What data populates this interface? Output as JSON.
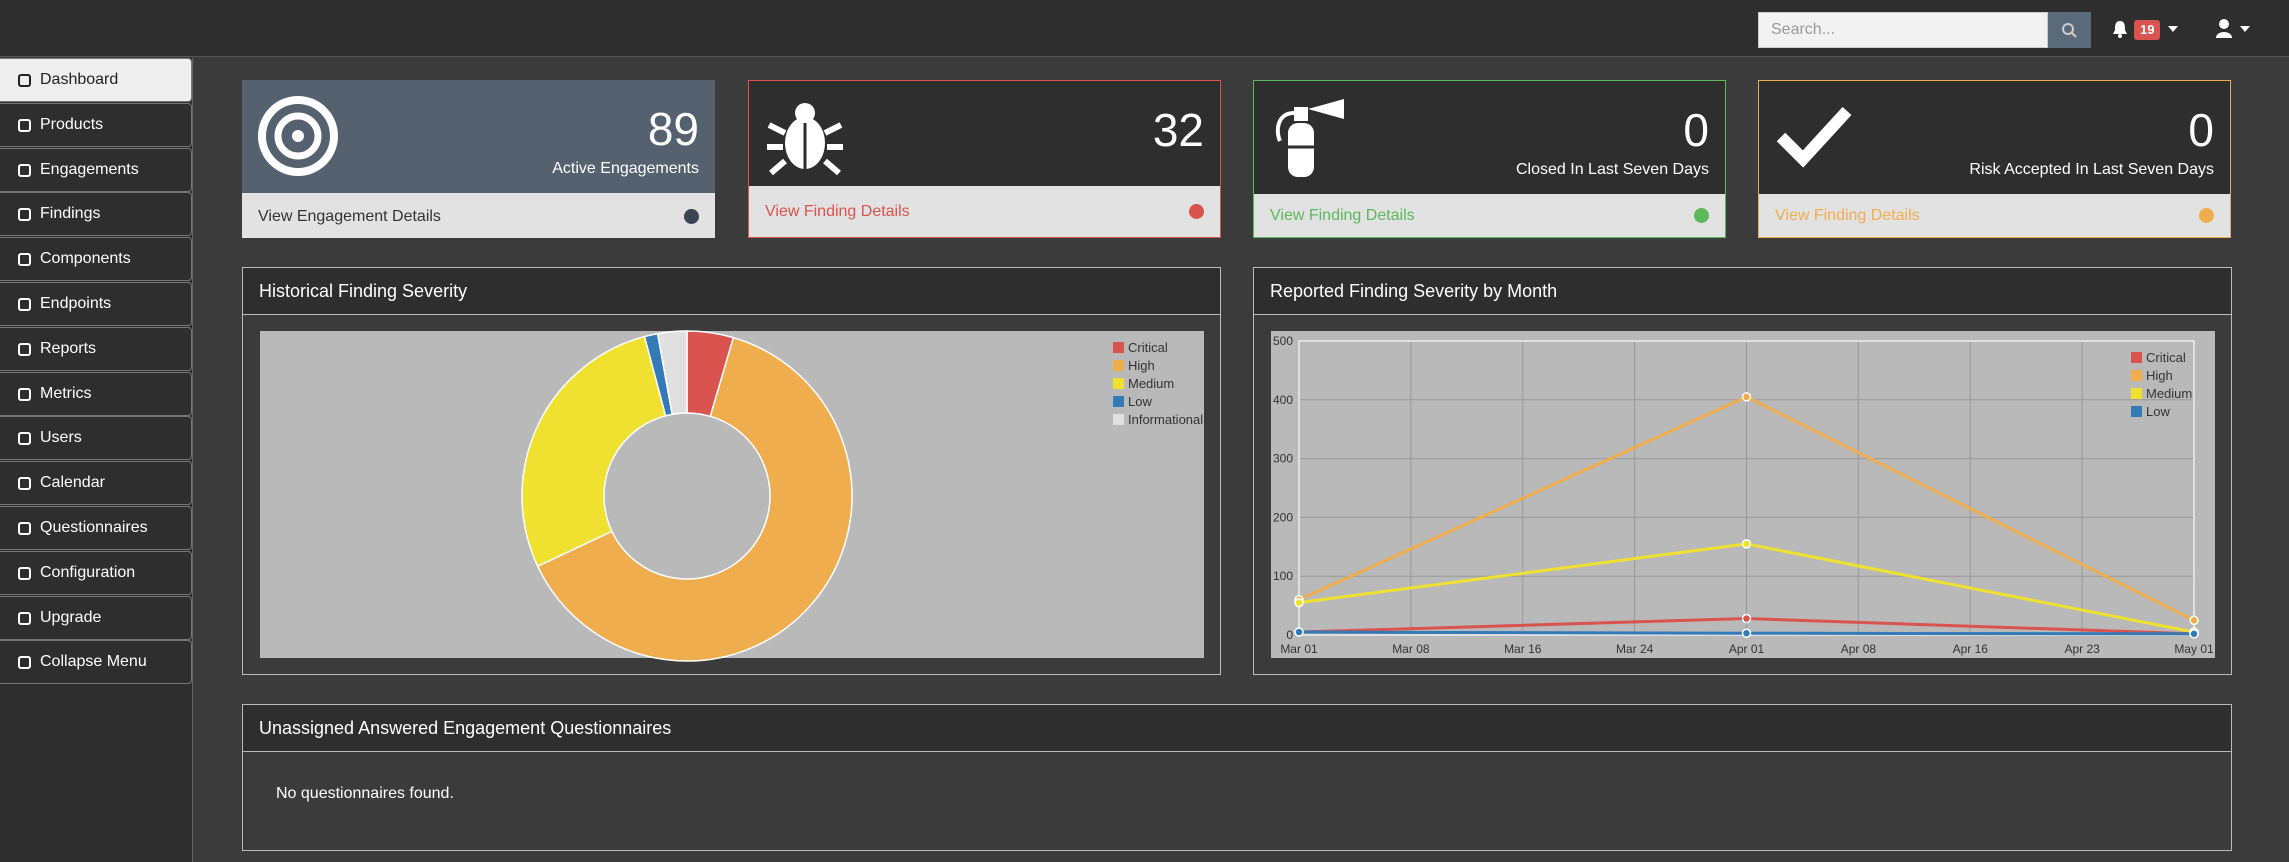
{
  "header": {
    "search_placeholder": "Search...",
    "notification_count": "19"
  },
  "sidebar": {
    "items": [
      "Dashboard",
      "Products",
      "Engagements",
      "Findings",
      "Components",
      "Endpoints",
      "Reports",
      "Metrics",
      "Users",
      "Calendar",
      "Questionnaires",
      "Configuration",
      "Upgrade",
      "Collapse Menu"
    ]
  },
  "cards": [
    {
      "value": 89,
      "label": "Active Engagements",
      "link": "View Engagement Details"
    },
    {
      "value": 32,
      "link": "View Finding Details"
    },
    {
      "value": 0,
      "label": "Closed In Last Seven Days",
      "link": "View Finding Details"
    },
    {
      "value": 0,
      "label": "Risk Accepted In Last Seven Days",
      "link": "View Finding Details"
    }
  ],
  "chart_data": [
    {
      "type": "pie",
      "title": "Historical Finding Severity",
      "donut": true,
      "categories": [
        "Critical",
        "High",
        "Medium",
        "Low",
        "Informational"
      ],
      "values": [
        35,
        490,
        215,
        10,
        22
      ],
      "colors": [
        "#d9534f",
        "#f0ad4e",
        "#f0e130",
        "#337ab7",
        "#e0e0e0"
      ]
    },
    {
      "type": "line",
      "title": "Reported Finding Severity by Month",
      "x": [
        "Mar 01",
        "Apr 01",
        "May 01"
      ],
      "xticks": [
        "Mar 01",
        "Mar 08",
        "Mar 16",
        "Mar 24",
        "Apr 01",
        "Apr 08",
        "Apr 16",
        "Apr 23",
        "May 01"
      ],
      "ylim": [
        0,
        500
      ],
      "yticks": [
        0,
        100,
        200,
        300,
        400,
        500
      ],
      "grid": true,
      "series": [
        {
          "name": "Critical",
          "color": "#d9534f",
          "values": [
            5,
            28,
            2
          ]
        },
        {
          "name": "High",
          "color": "#f0ad4e",
          "values": [
            60,
            405,
            25
          ]
        },
        {
          "name": "Medium",
          "color": "#f0e130",
          "values": [
            55,
            155,
            5
          ]
        },
        {
          "name": "Low",
          "color": "#337ab7",
          "values": [
            5,
            3,
            2
          ]
        }
      ]
    }
  ],
  "questionnaires": {
    "title": "Unassigned Answered Engagement Questionnaires",
    "empty_message": "No questionnaires found."
  }
}
